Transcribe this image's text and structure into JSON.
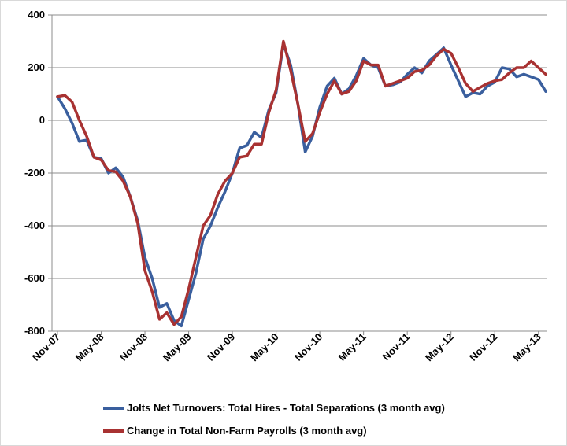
{
  "chart_data": {
    "type": "line",
    "title": "",
    "xlabel": "",
    "ylabel": "",
    "ylim": [
      -800,
      400
    ],
    "yticks": [
      400,
      200,
      0,
      -200,
      -400,
      -600,
      -800
    ],
    "y_tick_labels": [
      "400",
      "200",
      "0",
      "-200",
      "-400",
      "-600",
      "-800"
    ],
    "x_tick_labels": [
      "Nov-07",
      "May-08",
      "Nov-08",
      "May-09",
      "Nov-09",
      "May-10",
      "Nov-10",
      "May-11",
      "Nov-11",
      "May-12",
      "Nov-12",
      "May-13"
    ],
    "grid": "horizontal",
    "legend_position": "bottom",
    "series": [
      {
        "name": "Jolts Net Turnovers: Total Hires - Total Separations (3 month avg)",
        "color": "#3a5f9e",
        "values": [
          90,
          45,
          -10,
          -80,
          -75,
          -140,
          -145,
          -200,
          -180,
          -215,
          -290,
          -380,
          -520,
          -600,
          -710,
          -695,
          -760,
          -780,
          -680,
          -580,
          -450,
          -400,
          -330,
          -270,
          -200,
          -105,
          -95,
          -45,
          -65,
          40,
          105,
          290,
          210,
          60,
          -120,
          -60,
          50,
          130,
          160,
          100,
          120,
          170,
          235,
          210,
          200,
          130,
          135,
          145,
          175,
          200,
          180,
          225,
          250,
          275,
          210,
          150,
          90,
          105,
          100,
          130,
          145,
          200,
          195,
          165,
          175,
          165,
          155,
          110
        ]
      },
      {
        "name": "Change in Total Non-Farm Payrolls (3 month avg)",
        "color": "#a83232",
        "values": [
          90,
          95,
          70,
          0,
          -60,
          -140,
          -150,
          -190,
          -195,
          -230,
          -290,
          -390,
          -570,
          -650,
          -755,
          -730,
          -775,
          -745,
          -640,
          -520,
          -400,
          -360,
          -280,
          -230,
          -200,
          -140,
          -135,
          -90,
          -90,
          30,
          115,
          300,
          190,
          60,
          -80,
          -50,
          30,
          100,
          150,
          100,
          110,
          150,
          225,
          210,
          210,
          130,
          140,
          150,
          160,
          185,
          190,
          210,
          245,
          270,
          255,
          200,
          140,
          110,
          125,
          140,
          150,
          155,
          180,
          200,
          200,
          225,
          200,
          175
        ]
      }
    ]
  }
}
